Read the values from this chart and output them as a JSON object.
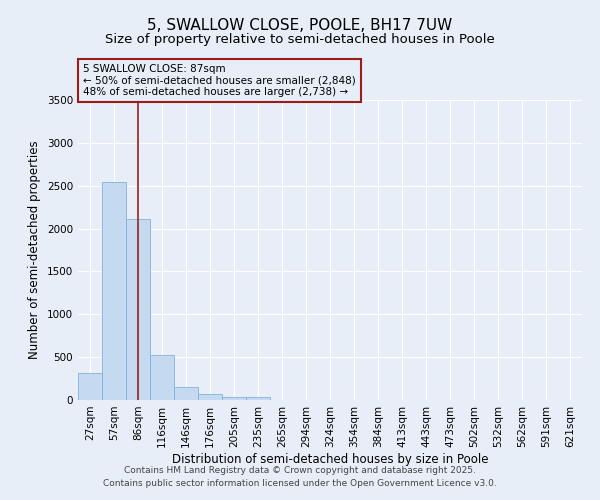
{
  "title": "5, SWALLOW CLOSE, POOLE, BH17 7UW",
  "subtitle": "Size of property relative to semi-detached houses in Poole",
  "xlabel": "Distribution of semi-detached houses by size in Poole",
  "ylabel": "Number of semi-detached properties",
  "categories": [
    "27sqm",
    "57sqm",
    "86sqm",
    "116sqm",
    "146sqm",
    "176sqm",
    "205sqm",
    "235sqm",
    "265sqm",
    "294sqm",
    "324sqm",
    "354sqm",
    "384sqm",
    "413sqm",
    "443sqm",
    "473sqm",
    "502sqm",
    "532sqm",
    "562sqm",
    "591sqm",
    "621sqm"
  ],
  "values": [
    310,
    2540,
    2110,
    520,
    150,
    70,
    35,
    30,
    0,
    0,
    0,
    0,
    0,
    0,
    0,
    0,
    0,
    0,
    0,
    0,
    0
  ],
  "bar_color": "#c5d9f0",
  "bar_edge_color": "#7fb3d9",
  "property_index": 2,
  "property_line_color": "#9b1c1c",
  "annotation_line1": "5 SWALLOW CLOSE: 87sqm",
  "annotation_line2": "← 50% of semi-detached houses are smaller (2,848)",
  "annotation_line3": "48% of semi-detached houses are larger (2,738) →",
  "annotation_box_color": "#9b1c1c",
  "ylim": [
    0,
    3500
  ],
  "yticks": [
    0,
    500,
    1000,
    1500,
    2000,
    2500,
    3000,
    3500
  ],
  "background_color": "#e8eef7",
  "grid_color": "#ffffff",
  "footer_line1": "Contains HM Land Registry data © Crown copyright and database right 2025.",
  "footer_line2": "Contains public sector information licensed under the Open Government Licence v3.0.",
  "title_fontsize": 11,
  "subtitle_fontsize": 9.5,
  "axis_label_fontsize": 8.5,
  "tick_fontsize": 7.5,
  "annotation_fontsize": 7.5,
  "footer_fontsize": 6.5
}
